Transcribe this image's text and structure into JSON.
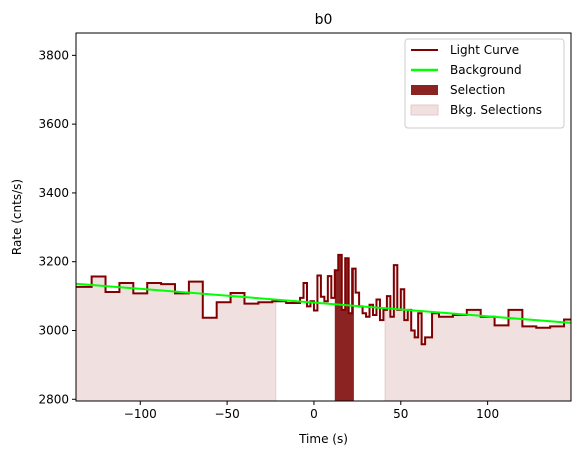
{
  "chart_data": {
    "type": "line",
    "title": "b0",
    "xlabel": "Time (s)",
    "ylabel": "Rate (cnts/s)",
    "xlim": [
      -137,
      148
    ],
    "ylim": [
      2795,
      3865
    ],
    "xticks": [
      -100,
      -50,
      0,
      50,
      100
    ],
    "yticks": [
      2800,
      3000,
      3200,
      3400,
      3600,
      3800
    ],
    "grid": false,
    "legend_position": "top-right",
    "colors": {
      "light_curve": "#7f0000",
      "background": "#00ff00",
      "selection": "#8b2323",
      "bkg_selection": "#f0e0e0",
      "bkg_selection_edge": "#e8c8cc"
    },
    "legend": [
      {
        "key": "light_curve",
        "label": "Light Curve",
        "style": "line"
      },
      {
        "key": "background",
        "label": "Background",
        "style": "thick-line"
      },
      {
        "key": "selection",
        "label": "Selection",
        "style": "patch"
      },
      {
        "key": "bkg_selection",
        "label": "Bkg. Selections",
        "style": "patch-light"
      }
    ],
    "background_fit": {
      "x": [
        -137,
        148
      ],
      "y": [
        3136,
        3022
      ]
    },
    "selection_interval": [
      12,
      23
    ],
    "bkg_selection_intervals": [
      [
        -137,
        -22
      ],
      [
        41,
        148
      ]
    ],
    "light_curve_edges": [
      -137,
      -128,
      -120,
      -112,
      -104,
      -96,
      -88,
      -80,
      -72,
      -64,
      -56,
      -48,
      -40,
      -32,
      -24,
      -16,
      -8,
      -6,
      -4,
      -2,
      0,
      2,
      4,
      6,
      8,
      10,
      12,
      14,
      16,
      18,
      20,
      22,
      24,
      26,
      28,
      30,
      32,
      34,
      36,
      38,
      40,
      42,
      44,
      46,
      48,
      50,
      52,
      54,
      56,
      58,
      60,
      62,
      64,
      68,
      72,
      80,
      88,
      96,
      104,
      112,
      120,
      128,
      136,
      144,
      148
    ],
    "light_curve_values": [
      3127,
      3157,
      3112,
      3138,
      3108,
      3138,
      3135,
      3108,
      3142,
      3037,
      3082,
      3109,
      3078,
      3082,
      3085,
      3080,
      3095,
      3138,
      3070,
      3085,
      3058,
      3160,
      3098,
      3085,
      3158,
      3095,
      3175,
      3220,
      3060,
      3210,
      3050,
      3180,
      3110,
      3070,
      3050,
      3040,
      3075,
      3045,
      3090,
      3030,
      3060,
      3100,
      3040,
      3190,
      3060,
      3120,
      3030,
      3060,
      3000,
      2980,
      3050,
      2960,
      2980,
      3050,
      3040,
      3045,
      3060,
      3040,
      3015,
      3060,
      3012,
      3008,
      3012,
      3032,
      3032
    ]
  }
}
